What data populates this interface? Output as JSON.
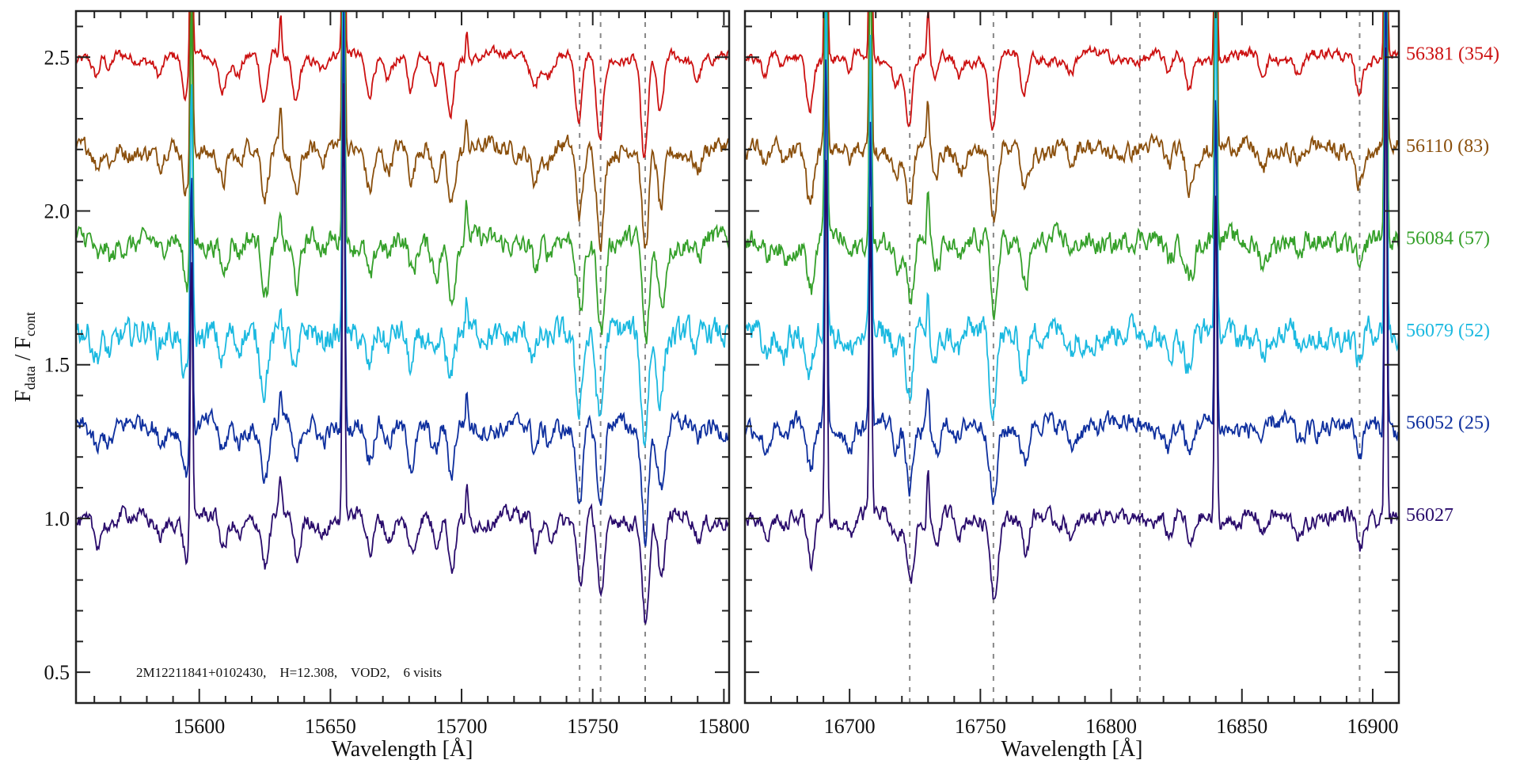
{
  "chart_data": {
    "type": "line",
    "title": "",
    "ylabel_main": "F",
    "ylabel_sub1": "data",
    "ylabel_sep": " / F",
    "ylabel_sub2": "cont",
    "xlabel": "Wavelength [Å]",
    "ylim": [
      0.4,
      2.65
    ],
    "yticks": [
      "0.5",
      "1.0",
      "1.5",
      "2.0",
      "2.5"
    ],
    "annotation": "2M12211841+0102430,    H=12.308,    VOD2,    6 visits",
    "panels": [
      {
        "name": "left",
        "xlim": [
          15553,
          15802
        ],
        "xticks": [
          "15600",
          "15650",
          "15700",
          "15750",
          "15800"
        ],
        "marker_lines": [
          15745,
          15753,
          15770
        ],
        "absorption": [
          [
            15561,
            0.07
          ],
          [
            15566,
            0.05
          ],
          [
            15585,
            0.05
          ],
          [
            15595,
            0.14
          ],
          [
            15609,
            0.1
          ],
          [
            15615,
            0.05
          ],
          [
            15625,
            0.16
          ],
          [
            15637,
            0.14
          ],
          [
            15647,
            0.04
          ],
          [
            15665,
            0.12
          ],
          [
            15672,
            0.06
          ],
          [
            15681,
            0.11
          ],
          [
            15690,
            0.09
          ],
          [
            15696,
            0.17
          ],
          [
            15728,
            0.09
          ],
          [
            15733,
            0.05
          ],
          [
            15745,
            0.22
          ],
          [
            15753,
            0.28
          ],
          [
            15770,
            0.34
          ],
          [
            15776,
            0.2
          ],
          [
            15790,
            0.06
          ]
        ],
        "emission": [
          [
            15597,
            0.9
          ],
          [
            15631,
            0.12
          ],
          [
            15655,
            1.4
          ],
          [
            15702,
            0.1
          ]
        ]
      },
      {
        "name": "right",
        "xlim": [
          16660,
          16910
        ],
        "xticks": [
          "16700",
          "16750",
          "16800",
          "16850",
          "16900"
        ],
        "marker_lines": [
          16723,
          16755,
          16811,
          16895
        ],
        "absorption": [
          [
            16668,
            0.06
          ],
          [
            16675,
            0.05
          ],
          [
            16685,
            0.16
          ],
          [
            16700,
            0.05
          ],
          [
            16718,
            0.08
          ],
          [
            16723,
            0.2
          ],
          [
            16733,
            0.08
          ],
          [
            16742,
            0.06
          ],
          [
            16755,
            0.24
          ],
          [
            16767,
            0.13
          ],
          [
            16785,
            0.05
          ],
          [
            16822,
            0.06
          ],
          [
            16830,
            0.11
          ],
          [
            16858,
            0.06
          ],
          [
            16872,
            0.05
          ],
          [
            16895,
            0.1
          ]
        ],
        "emission": [
          [
            16691,
            1.2
          ],
          [
            16708,
            1.0
          ],
          [
            16730,
            0.15
          ],
          [
            16840,
            1.1
          ],
          [
            16905,
            1.6
          ]
        ]
      }
    ],
    "series": [
      {
        "name": "56381 (354)",
        "offset": 2.5,
        "color": "#cc1111",
        "noise": 0.012
      },
      {
        "name": "56110 (83)",
        "offset": 2.2,
        "color": "#8a4f0c",
        "noise": 0.02
      },
      {
        "name": "56084 (57)",
        "offset": 1.9,
        "color": "#35a02a",
        "noise": 0.024
      },
      {
        "name": "56079 (52)",
        "offset": 1.6,
        "color": "#1bb9e0",
        "noise": 0.03
      },
      {
        "name": "56052 (25)",
        "offset": 1.3,
        "color": "#0e2f9e",
        "noise": 0.022
      },
      {
        "name": "56027",
        "offset": 1.0,
        "color": "#2a0c6c",
        "noise": 0.018
      }
    ]
  }
}
